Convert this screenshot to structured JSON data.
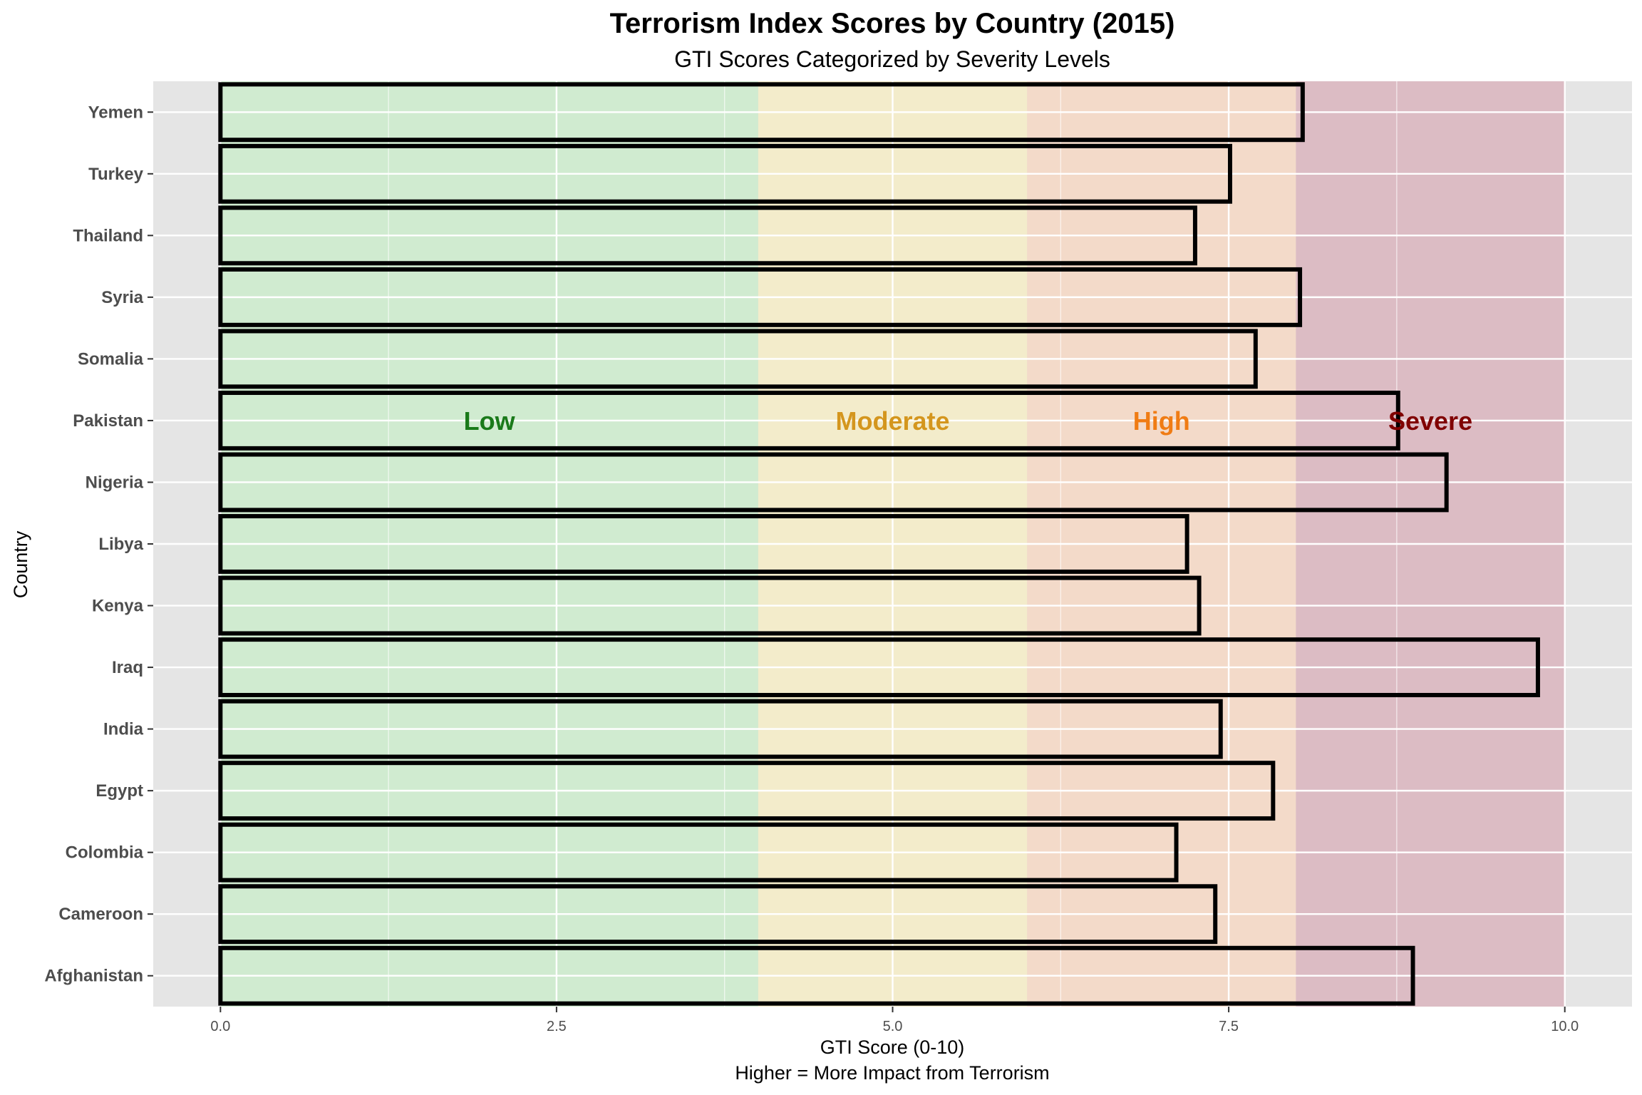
{
  "chart_data": {
    "type": "bar",
    "orientation": "horizontal",
    "title": "Terrorism Index Scores by Country (2015)",
    "subtitle": "GTI Scores Categorized by Severity Levels",
    "xlabel": "GTI Score (0-10)",
    "xlabel_note": "Higher = More Impact from Terrorism",
    "ylabel": "Country",
    "xlim": [
      -0.5,
      10.5
    ],
    "x_ticks": [
      0,
      2.5,
      5,
      7.5,
      10
    ],
    "x_tick_labels": [
      "0.0",
      "2.5",
      "5.0",
      "7.5",
      "10.0"
    ],
    "grid": true,
    "categories": [
      "Afghanistan",
      "Cameroon",
      "Colombia",
      "Egypt",
      "India",
      "Iraq",
      "Kenya",
      "Libya",
      "Nigeria",
      "Pakistan",
      "Somalia",
      "Syria",
      "Thailand",
      "Turkey",
      "Yemen"
    ],
    "values": [
      8.87,
      7.4,
      7.11,
      7.83,
      7.44,
      9.8,
      7.28,
      7.19,
      9.12,
      8.76,
      7.7,
      8.03,
      7.25,
      7.51,
      8.05
    ],
    "bands": [
      {
        "label": "Low",
        "from": 0,
        "to": 4,
        "color": "#c8ecc8",
        "label_color": "#1a7a1a"
      },
      {
        "label": "Moderate",
        "from": 4,
        "to": 6,
        "color": "#f7edc2",
        "label_color": "#d4961e"
      },
      {
        "label": "High",
        "from": 6,
        "to": 8,
        "color": "#f7d6bf",
        "label_color": "#f07c14"
      },
      {
        "label": "Severe",
        "from": 8,
        "to": 10,
        "color": "#d8aeb8",
        "label_color": "#800000"
      }
    ],
    "band_label_row": "Pakistan",
    "colors": {
      "panel_background": "#e5e5e5",
      "grid": "#ffffff",
      "bar_outline": "#000000"
    }
  }
}
